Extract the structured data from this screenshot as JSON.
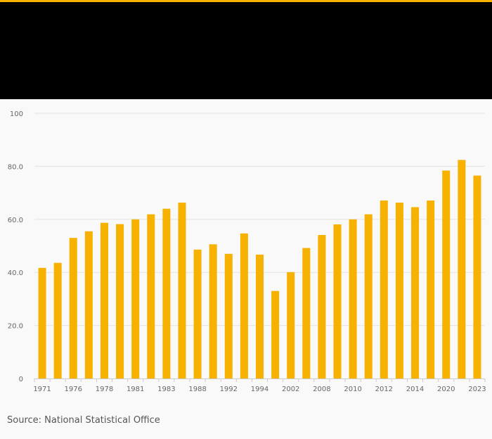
{
  "colors": {
    "accent": "#f7b100",
    "header_band": "#000000",
    "background": "#f9f9f9",
    "bar": "#f7b100",
    "grid": "#e3e3e3",
    "tick_text": "#666666"
  },
  "footer": {
    "source": "Source: National Statistical Office"
  },
  "chart_data": {
    "type": "bar",
    "title": "",
    "xlabel": "",
    "ylabel": "",
    "ylim": [
      0,
      100
    ],
    "yticks": [
      0,
      20,
      40,
      60,
      80,
      100
    ],
    "ytick_labels": [
      "0",
      "20.0",
      "40.0",
      "60.0",
      "80.0",
      "100"
    ],
    "grid": true,
    "legend": "none",
    "categories": [
      "1971",
      "1975",
      "1976",
      "1977",
      "1978",
      "1980",
      "1981",
      "1982",
      "1983",
      "1984",
      "1988",
      "1990",
      "1992",
      "1993",
      "1994",
      "1998",
      "2002",
      "2004",
      "2008",
      "2009",
      "2010",
      "2011",
      "2012",
      "2013",
      "2014",
      "2015",
      "2020",
      "2022",
      "2023"
    ],
    "category_labels_shown": [
      "1971",
      "",
      "1976",
      "",
      "1978",
      "",
      "1981",
      "",
      "1983",
      "",
      "1988",
      "",
      "1992",
      "",
      "1994",
      "",
      "2002",
      "",
      "2008",
      "",
      "2010",
      "",
      "2012",
      "",
      "2014",
      "",
      "2020",
      "",
      "2023"
    ],
    "values": [
      41.7,
      43.6,
      53.0,
      55.5,
      58.7,
      58.2,
      60.0,
      61.9,
      64.0,
      66.3,
      48.6,
      50.6,
      47.0,
      54.7,
      46.7,
      33.0,
      40.1,
      49.2,
      54.1,
      58.1,
      60.0,
      61.9,
      67.1,
      66.3,
      64.6,
      67.1,
      78.4,
      82.4,
      76.5
    ]
  }
}
